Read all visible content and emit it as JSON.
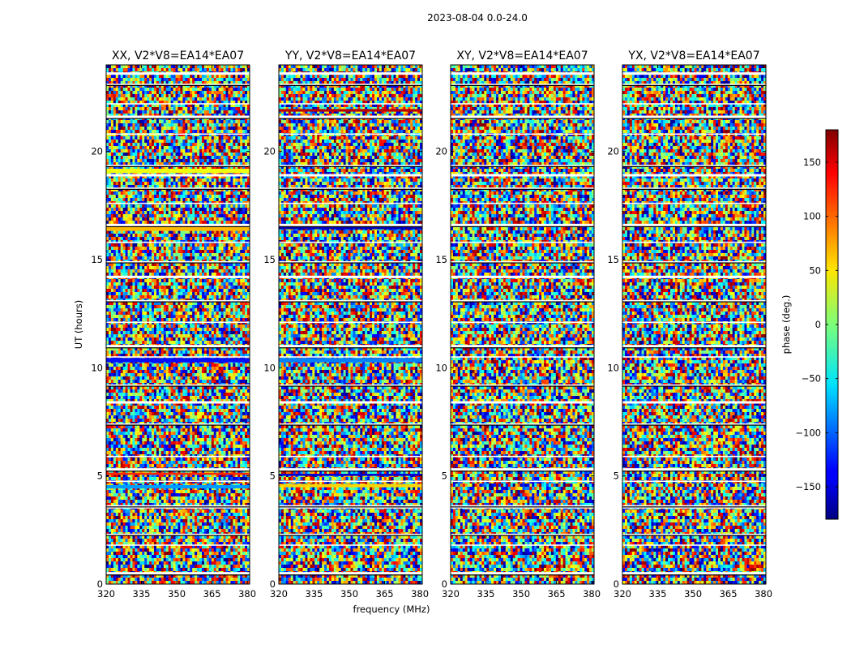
{
  "figure": {
    "suptitle": "2023-08-04 0.0-24.0"
  },
  "chart_data": {
    "type": "heatmap",
    "panels": [
      {
        "title": "XX, V2*V8=EA14*EA07",
        "pol": "XX"
      },
      {
        "title": "YY, V2*V8=EA14*EA07",
        "pol": "YY"
      },
      {
        "title": "XY, V2*V8=EA14*EA07",
        "pol": "XY"
      },
      {
        "title": "YX, V2*V8=EA14*EA07",
        "pol": "YX"
      }
    ],
    "xlabel": "frequency (MHz)",
    "ylabel": "UT (hours)",
    "xlim": [
      320,
      381
    ],
    "ylim": [
      0,
      24
    ],
    "xticks": [
      320,
      335,
      350,
      365,
      380
    ],
    "yticks": [
      0,
      5,
      10,
      15,
      20
    ],
    "colorbar": {
      "label": "phase (deg.)",
      "range": [
        -180,
        180
      ],
      "ticks": [
        150,
        100,
        50,
        0,
        -50,
        -100,
        -150
      ],
      "tick_labels": [
        "150",
        "100",
        "50",
        "0",
        "−50",
        "−100",
        "−150"
      ]
    },
    "flagged_bands_hours": [
      0.5,
      1.8,
      2.3,
      3.55,
      3.62,
      4.75,
      5.3,
      5.9,
      7.4,
      8.4,
      9.2,
      10.5,
      11.0,
      12.1,
      13.1,
      14.2,
      14.9,
      15.8,
      16.6,
      17.6,
      18.3,
      18.9,
      19.35,
      20.8,
      21.6,
      22.2,
      23.1,
      23.6
    ],
    "strong_phase_bands": {
      "XX": [
        {
          "t": 16.45,
          "phase": 70,
          "h": 0.25
        },
        {
          "t": 10.35,
          "phase": -130,
          "h": 0.2
        },
        {
          "t": 19.1,
          "phase": 40,
          "h": 0.2
        },
        {
          "t": 4.5,
          "phase": -80,
          "h": 0.15
        },
        {
          "t": 5.1,
          "phase": 120,
          "h": 0.1
        }
      ],
      "YY": [
        {
          "t": 16.45,
          "phase": -160,
          "h": 0.1
        },
        {
          "t": 16.6,
          "phase": 140,
          "h": 0.1
        },
        {
          "t": 10.35,
          "phase": -90,
          "h": 0.2
        },
        {
          "t": 21.9,
          "phase": 160,
          "h": 0.12
        },
        {
          "t": 4.55,
          "phase": 60,
          "h": 0.15
        },
        {
          "t": 5.05,
          "phase": -150,
          "h": 0.1
        }
      ],
      "XY": [],
      "YX": []
    }
  }
}
